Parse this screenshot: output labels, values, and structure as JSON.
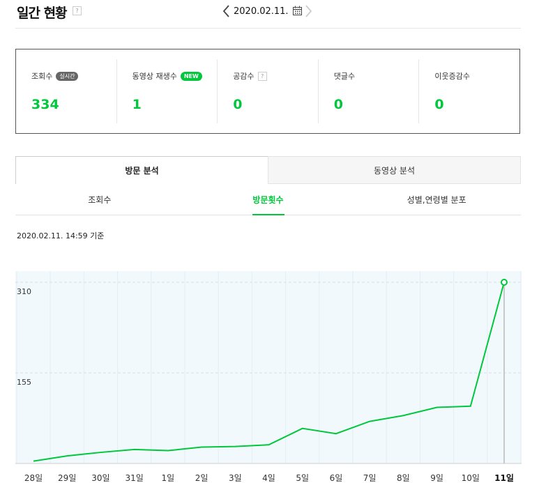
{
  "header": {
    "title": "일간 현황",
    "help": "?",
    "date": "2020.02.11."
  },
  "summary": [
    {
      "label": "조회수",
      "badge": "실시간",
      "badge_color": "#666666",
      "value": "334"
    },
    {
      "label": "동영상 재생수",
      "badge": "NEW",
      "badge_color": "#00c73c",
      "value": "1"
    },
    {
      "label": "공감수",
      "help": "?",
      "value": "0"
    },
    {
      "label": "댓글수",
      "value": "0"
    },
    {
      "label": "이웃증감수",
      "value": "0"
    }
  ],
  "tabs": {
    "main": [
      "방문 분석",
      "동영상 분석"
    ],
    "main_active": 0,
    "sub": [
      "조회수",
      "방문횟수",
      "성별,연령별 분포"
    ],
    "sub_active": 1
  },
  "timestamp": "2020.02.11. 14:59 기준",
  "colors": {
    "accent": "#00c73c",
    "plot_bg": "#f1f9fd"
  },
  "chart_data": {
    "type": "line",
    "categories": [
      "28일",
      "29일",
      "30일",
      "31일",
      "1일",
      "2일",
      "3일",
      "4일",
      "5일",
      "6일",
      "7일",
      "8일",
      "9일",
      "10일",
      "11일"
    ],
    "highlight_category": "11일",
    "yticks": [
      155,
      310
    ],
    "ylim": [
      0,
      310
    ],
    "series": [
      {
        "values": [
          4,
          13,
          19,
          24,
          22,
          28,
          29,
          32,
          60,
          51,
          72,
          82,
          96,
          98,
          310
        ]
      }
    ]
  }
}
